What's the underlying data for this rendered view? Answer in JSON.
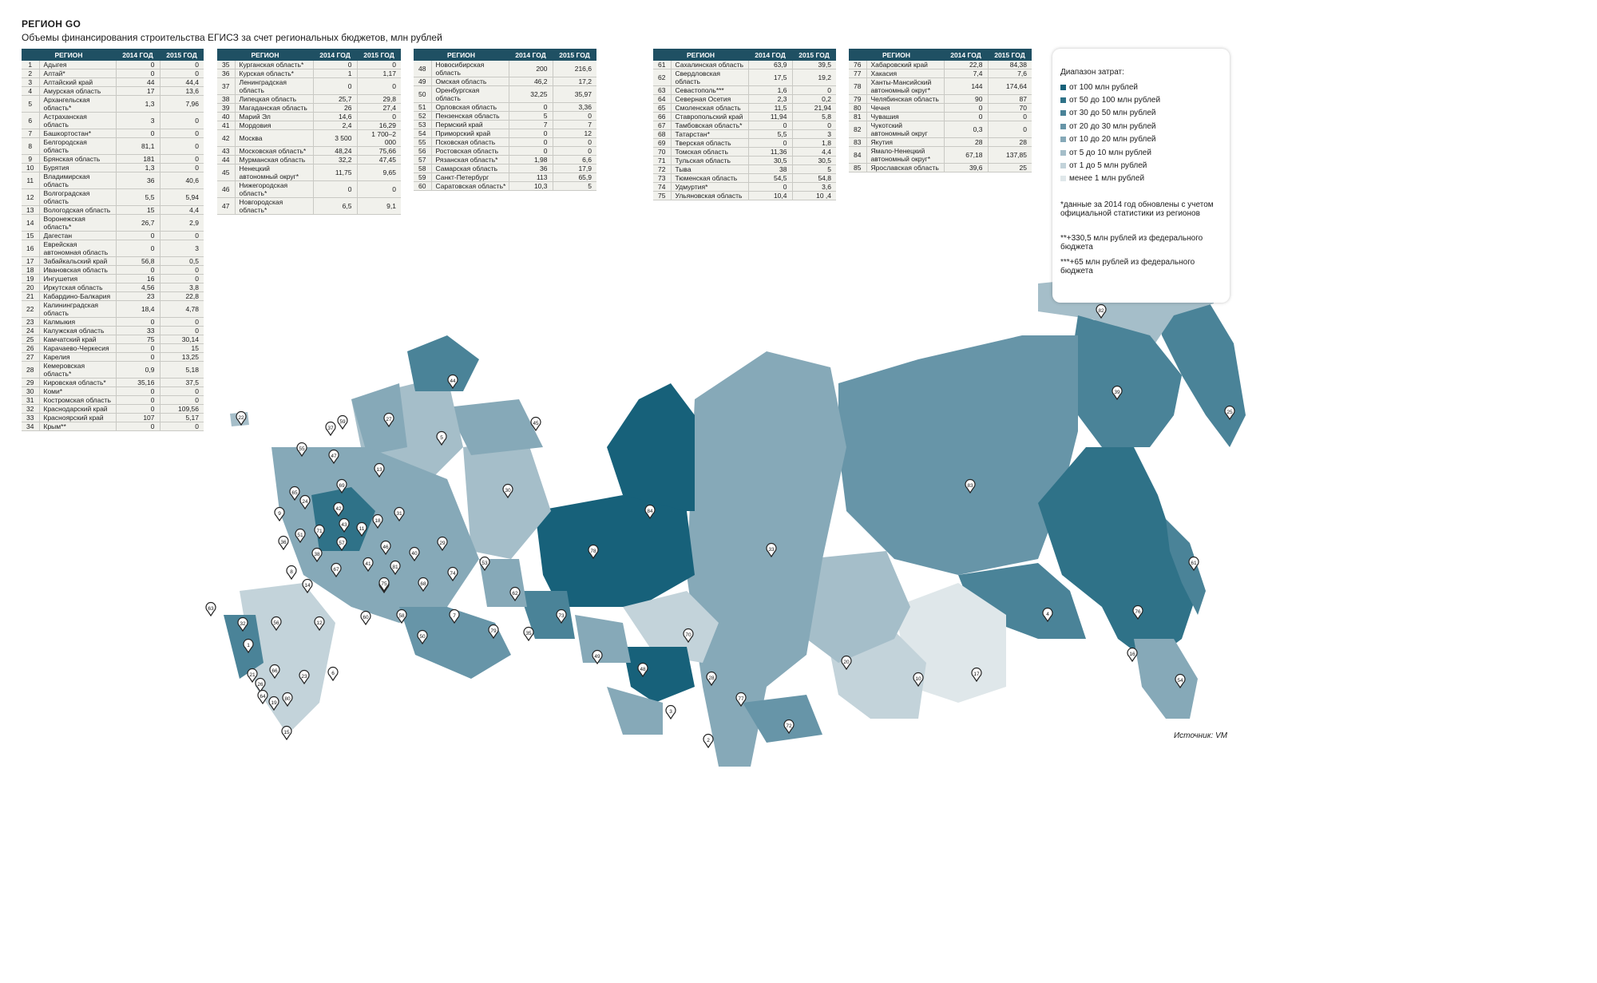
{
  "title": "РЕГИОН GO",
  "subtitle": "Объемы финансирования строительства ЕГИСЗ за счет региональных бюджетов, млн рублей",
  "table_header": {
    "region": "РЕГИОН",
    "y2014": "2014 ГОД",
    "y2015": "2015 ГОД"
  },
  "tables": [
    {
      "rows": [
        {
          "n": "1",
          "name": "Адыгея",
          "v14": "0",
          "v15": "0"
        },
        {
          "n": "2",
          "name": "Алтай*",
          "v14": "0",
          "v15": "0"
        },
        {
          "n": "3",
          "name": "Алтайский край",
          "v14": "44",
          "v15": "44,4"
        },
        {
          "n": "4",
          "name": "Амурская область",
          "v14": "17",
          "v15": "13,6"
        },
        {
          "n": "5",
          "name": "Архангельская область*",
          "v14": "1,3",
          "v15": "7,96"
        },
        {
          "n": "6",
          "name": "Астраханская область",
          "v14": "3",
          "v15": "0"
        },
        {
          "n": "7",
          "name": "Башкортостан*",
          "v14": "0",
          "v15": "0"
        },
        {
          "n": "8",
          "name": "Белгородская область",
          "v14": "81,1",
          "v15": "0"
        },
        {
          "n": "9",
          "name": "Брянская область",
          "v14": "181",
          "v15": "0"
        },
        {
          "n": "10",
          "name": "Бурятия",
          "v14": "1,3",
          "v15": "0"
        },
        {
          "n": "11",
          "name": "Владимирская область",
          "v14": "36",
          "v15": "40,6"
        },
        {
          "n": "12",
          "name": "Волгоградская область",
          "v14": "5,5",
          "v15": "5,94"
        },
        {
          "n": "13",
          "name": "Вологодская область",
          "v14": "15",
          "v15": "4,4"
        },
        {
          "n": "14",
          "name": "Воронежская область*",
          "v14": "26,7",
          "v15": "2,9"
        },
        {
          "n": "15",
          "name": "Дагестан",
          "v14": "0",
          "v15": "0"
        },
        {
          "n": "16",
          "name": "Еврейская автономная область",
          "v14": "0",
          "v15": "3"
        },
        {
          "n": "17",
          "name": "Забайкальский край",
          "v14": "56,8",
          "v15": "0,5"
        },
        {
          "n": "18",
          "name": "Ивановская область",
          "v14": "0",
          "v15": "0"
        },
        {
          "n": "19",
          "name": "Ингушетия",
          "v14": "16",
          "v15": "0"
        },
        {
          "n": "20",
          "name": "Иркутская область",
          "v14": "4,56",
          "v15": "3,8"
        },
        {
          "n": "21",
          "name": "Кабардино-Балкария",
          "v14": "23",
          "v15": "22,8"
        },
        {
          "n": "22",
          "name": "Калининградская область",
          "v14": "18,4",
          "v15": "4,78"
        },
        {
          "n": "23",
          "name": "Калмыкия",
          "v14": "0",
          "v15": "0"
        },
        {
          "n": "24",
          "name": "Калужская область",
          "v14": "33",
          "v15": "0"
        },
        {
          "n": "25",
          "name": "Камчатский край",
          "v14": "75",
          "v15": "30,14"
        },
        {
          "n": "26",
          "name": "Карачаево-Черкесия",
          "v14": "0",
          "v15": "15"
        },
        {
          "n": "27",
          "name": "Карелия",
          "v14": "0",
          "v15": "13,25"
        },
        {
          "n": "28",
          "name": "Кемеровская область*",
          "v14": "0,9",
          "v15": "5,18"
        },
        {
          "n": "29",
          "name": "Кировская область*",
          "v14": "35,16",
          "v15": "37,5"
        },
        {
          "n": "30",
          "name": "Коми*",
          "v14": "0",
          "v15": "0"
        },
        {
          "n": "31",
          "name": "Костромская область",
          "v14": "0",
          "v15": "0"
        },
        {
          "n": "32",
          "name": "Краснодарский край",
          "v14": "0",
          "v15": "109,56"
        },
        {
          "n": "33",
          "name": "Красноярский край",
          "v14": "107",
          "v15": "5,17"
        },
        {
          "n": "34",
          "name": "Крым**",
          "v14": "0",
          "v15": "0"
        }
      ]
    },
    {
      "rows": [
        {
          "n": "35",
          "name": "Курганская область*",
          "v14": "0",
          "v15": "0"
        },
        {
          "n": "36",
          "name": "Курская область*",
          "v14": "1",
          "v15": "1,17"
        },
        {
          "n": "37",
          "name": "Ленинградская область",
          "v14": "0",
          "v15": "0"
        },
        {
          "n": "38",
          "name": "Липецкая область",
          "v14": "25,7",
          "v15": "29,8"
        },
        {
          "n": "39",
          "name": "Магаданская область",
          "v14": "26",
          "v15": "27,4"
        },
        {
          "n": "40",
          "name": "Марий Эл",
          "v14": "14,6",
          "v15": "0"
        },
        {
          "n": "41",
          "name": "Мордовия",
          "v14": "2,4",
          "v15": "16,29"
        },
        {
          "n": "42",
          "name": "Москва",
          "v14": "3 500",
          "v15": "1 700–2 000"
        },
        {
          "n": "43",
          "name": "Московская область*",
          "v14": "48,24",
          "v15": "75,66"
        },
        {
          "n": "44",
          "name": "Мурманская область",
          "v14": "32,2",
          "v15": "47,45"
        },
        {
          "n": "45",
          "name": "Ненецкий автономный округ*",
          "v14": "11,75",
          "v15": "9,65"
        },
        {
          "n": "46",
          "name": "Нижегородская область*",
          "v14": "0",
          "v15": "0"
        },
        {
          "n": "47",
          "name": "Новгородская область*",
          "v14": "6,5",
          "v15": "9,1"
        }
      ]
    },
    {
      "rows": [
        {
          "n": "48",
          "name": "Новосибирская область",
          "v14": "200",
          "v15": "216,6"
        },
        {
          "n": "49",
          "name": "Омская область",
          "v14": "46,2",
          "v15": "17,2"
        },
        {
          "n": "50",
          "name": "Оренбургская область",
          "v14": "32,25",
          "v15": "35,97"
        },
        {
          "n": "51",
          "name": "Орловская область",
          "v14": "0",
          "v15": "3,36"
        },
        {
          "n": "52",
          "name": "Пензенская область",
          "v14": "5",
          "v15": "0"
        },
        {
          "n": "53",
          "name": "Пермский край",
          "v14": "7",
          "v15": "7"
        },
        {
          "n": "54",
          "name": "Приморский край",
          "v14": "0",
          "v15": "12"
        },
        {
          "n": "55",
          "name": "Псковская область",
          "v14": "0",
          "v15": "0"
        },
        {
          "n": "56",
          "name": "Ростовская область",
          "v14": "0",
          "v15": "0"
        },
        {
          "n": "57",
          "name": "Рязанская область*",
          "v14": "1,98",
          "v15": "6,6"
        },
        {
          "n": "58",
          "name": "Самарская область",
          "v14": "36",
          "v15": "17,9"
        },
        {
          "n": "59",
          "name": "Санкт-Петербург",
          "v14": "113",
          "v15": "65,9"
        },
        {
          "n": "60",
          "name": "Саратовская область*",
          "v14": "10,3",
          "v15": "5"
        }
      ]
    },
    {
      "rows": [
        {
          "n": "61",
          "name": "Сахалинская область",
          "v14": "63,9",
          "v15": "39,5"
        },
        {
          "n": "62",
          "name": "Свердловская область",
          "v14": "17,5",
          "v15": "19,2"
        },
        {
          "n": "63",
          "name": "Севастополь***",
          "v14": "1,6",
          "v15": "0"
        },
        {
          "n": "64",
          "name": "Северная Осетия",
          "v14": "2,3",
          "v15": "0,2"
        },
        {
          "n": "65",
          "name": "Смоленская область",
          "v14": "11,5",
          "v15": "21,94"
        },
        {
          "n": "66",
          "name": "Ставропольский край",
          "v14": "11,94",
          "v15": "5,8"
        },
        {
          "n": "67",
          "name": "Тамбовская область*",
          "v14": "0",
          "v15": "0"
        },
        {
          "n": "68",
          "name": "Татарстан*",
          "v14": "5,5",
          "v15": "3"
        },
        {
          "n": "69",
          "name": "Тверская область",
          "v14": "0",
          "v15": "1,8"
        },
        {
          "n": "70",
          "name": "Томская область",
          "v14": "11,36",
          "v15": "4,4"
        },
        {
          "n": "71",
          "name": "Тульская область",
          "v14": "30,5",
          "v15": "30,5"
        },
        {
          "n": "72",
          "name": "Тыва",
          "v14": "38",
          "v15": "5"
        },
        {
          "n": "73",
          "name": "Тюменская область",
          "v14": "54,5",
          "v15": "54,8"
        },
        {
          "n": "74",
          "name": "Удмуртия*",
          "v14": "0",
          "v15": "3,6"
        },
        {
          "n": "75",
          "name": "Ульяновская область",
          "v14": "10,4",
          "v15": "10 ,4"
        }
      ]
    },
    {
      "rows": [
        {
          "n": "76",
          "name": "Хабаровский край",
          "v14": "22,8",
          "v15": "84,38"
        },
        {
          "n": "77",
          "name": "Хакасия",
          "v14": "7,4",
          "v15": "7,6"
        },
        {
          "n": "78",
          "name": "Ханты-Мансийский автономный округ*",
          "v14": "144",
          "v15": "174,64"
        },
        {
          "n": "79",
          "name": "Челябинская область",
          "v14": "90",
          "v15": "87"
        },
        {
          "n": "80",
          "name": "Чечня",
          "v14": "0",
          "v15": "70"
        },
        {
          "n": "81",
          "name": "Чувашия",
          "v14": "0",
          "v15": "0"
        },
        {
          "n": "82",
          "name": "Чукотский автономный округ",
          "v14": "0,3",
          "v15": "0"
        },
        {
          "n": "83",
          "name": "Якутия",
          "v14": "28",
          "v15": "28"
        },
        {
          "n": "84",
          "name": "Ямало-Ненецкий автономный округ*",
          "v14": "67,18",
          "v15": "137,85"
        },
        {
          "n": "85",
          "name": "Ярославская область",
          "v14": "39,6",
          "v15": "25"
        }
      ]
    }
  ],
  "legend": {
    "title": "Диапазон затрат:",
    "items": [
      {
        "label": "от 100 млн рублей",
        "color": "#17617a"
      },
      {
        "label": "от 50 до 100 млн рублей",
        "color": "#2f7288"
      },
      {
        "label": "от 30 до 50 млн рублей",
        "color": "#4a8398"
      },
      {
        "label": "от 20 до 30 млн рублей",
        "color": "#6795a8"
      },
      {
        "label": "от 10 до 20 млн рублей",
        "color": "#86a9b8"
      },
      {
        "label": "от 5 до 10 млн рублей",
        "color": "#a5bec9"
      },
      {
        "label": "от 1 до 5 млн рублей",
        "color": "#c3d3da"
      },
      {
        "label": "менее 1 млн рублей",
        "color": "#dfe7ea"
      }
    ],
    "notes": [
      "*данные за 2014 год обновлены с учетом официальной статистики из регионов",
      "**+330,5 млн рублей из федерального бюджета",
      "***+65 млн рублей из федерального бюджета"
    ]
  },
  "source": "Источник: VM",
  "map_markers": [
    "1",
    "2",
    "3",
    "4",
    "5",
    "6",
    "7",
    "8",
    "9",
    "10",
    "11",
    "12",
    "13",
    "14",
    "15",
    "16",
    "17",
    "18",
    "19",
    "20",
    "21",
    "22",
    "23",
    "24",
    "25",
    "26",
    "27",
    "28",
    "29",
    "30",
    "31",
    "32",
    "33",
    "35",
    "36",
    "37",
    "38",
    "39",
    "40",
    "41",
    "42",
    "43",
    "44",
    "45",
    "46",
    "47",
    "48",
    "49",
    "50",
    "51",
    "52",
    "53",
    "54",
    "55",
    "56",
    "57",
    "58",
    "59",
    "60",
    "61",
    "62",
    "63",
    "64",
    "65",
    "66",
    "67",
    "68",
    "69",
    "70",
    "71",
    "72",
    "73",
    "74",
    "75",
    "76",
    "77",
    "78",
    "79",
    "80",
    "81",
    "82",
    "83",
    "84"
  ]
}
